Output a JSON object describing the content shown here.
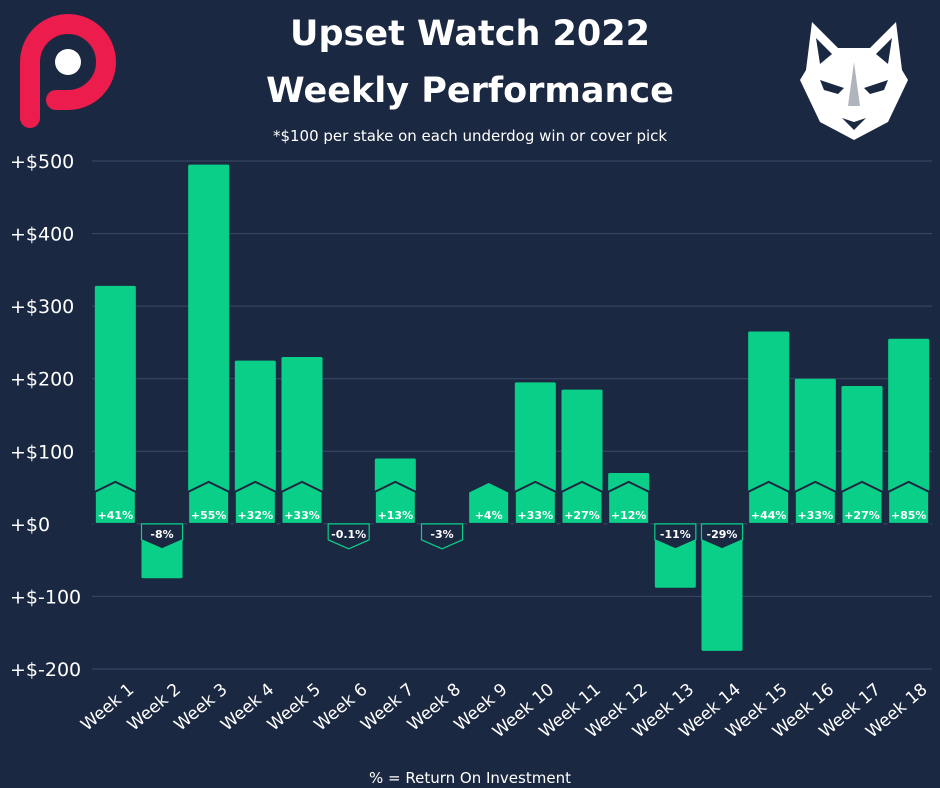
{
  "header": {
    "title_line1": "Upset Watch 2022",
    "title_line2": "Weekly Performance",
    "subtitle": "*$100 per stake on each underdog win or cover pick"
  },
  "footer": {
    "note": "% = Return On Investment"
  },
  "logos": {
    "left": "p-logo-icon",
    "right": "wolf-logo-icon"
  },
  "colors": {
    "background": "#1b2841",
    "bar": "#0acf89",
    "gridline": "#3a4a66",
    "badge_negative": "#1b2841",
    "logo_left": "#ec1c4c",
    "text": "#ffffff"
  },
  "chart_data": {
    "type": "bar",
    "title": "Upset Watch 2022 Weekly Performance",
    "subtitle": "*$100 per stake on each underdog win or cover pick",
    "xlabel": "",
    "ylabel": "",
    "ylim": [
      -200,
      500
    ],
    "yticks": [
      500,
      400,
      300,
      200,
      100,
      0,
      -100,
      -200
    ],
    "ytick_labels": [
      "+$500",
      "+$400",
      "+$300",
      "+$200",
      "+$100",
      "+$0",
      "+$-100",
      "+$-200"
    ],
    "grid": true,
    "categories": [
      "Week 1",
      "Week 2",
      "Week 3",
      "Week 4",
      "Week 5",
      "Week 6",
      "Week 7",
      "Week 8",
      "Week 9",
      "Week 10",
      "Week 11",
      "Week 12",
      "Week 13",
      "Week 14",
      "Week 15",
      "Week 16",
      "Week 17",
      "Week 18"
    ],
    "values": [
      328,
      -75,
      495,
      225,
      230,
      -1,
      90,
      -2,
      24,
      195,
      185,
      70,
      -88,
      -175,
      265,
      200,
      190,
      255
    ],
    "roi_labels": [
      "+41%",
      "-8%",
      "+55%",
      "+32%",
      "+33%",
      "-0.1%",
      "+13%",
      "-3%",
      "+4%",
      "+33%",
      "+27%",
      "+12%",
      "-11%",
      "-29%",
      "+44%",
      "+33%",
      "+27%",
      "+85%"
    ],
    "annotation": "% = Return On Investment"
  }
}
